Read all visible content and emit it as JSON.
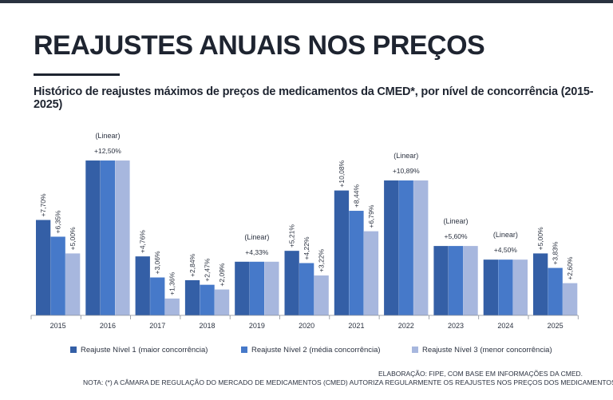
{
  "header": {
    "title": "REAJUSTES ANUAIS NOS PREÇOS",
    "subtitle": "Histórico de reajustes máximos de preços de medicamentos da CMED*, por nível de concorrência (2015-2025)"
  },
  "colors": {
    "nivel1": "#345fa6",
    "nivel2": "#4679c9",
    "nivel3": "#a7b7de",
    "text": "#1e2430"
  },
  "chart_data": {
    "type": "bar",
    "title": "",
    "xlabel": "",
    "ylabel": "",
    "ylim": [
      0,
      14.5
    ],
    "grid": false,
    "legend_position": "bottom",
    "categories": [
      "2015",
      "2016",
      "2017",
      "2018",
      "2019",
      "2020",
      "2021",
      "2022",
      "2023",
      "2024",
      "2025"
    ],
    "series": [
      {
        "name": "Reajuste Nível 1 (maior concorrência)",
        "values": [
          7.7,
          12.5,
          4.76,
          2.84,
          4.33,
          5.21,
          10.08,
          10.89,
          5.6,
          4.5,
          5.0
        ]
      },
      {
        "name": "Reajuste Nível 2 (média concorrência)",
        "values": [
          6.35,
          12.5,
          3.06,
          2.47,
          4.33,
          4.22,
          8.44,
          10.89,
          5.6,
          4.5,
          3.83
        ]
      },
      {
        "name": "Reajuste Nível 3 (menor concorrência)",
        "values": [
          5.0,
          12.5,
          1.36,
          2.09,
          4.33,
          3.22,
          6.79,
          10.89,
          5.6,
          4.5,
          2.6
        ]
      }
    ],
    "linear_years": [
      {
        "category": "2016",
        "note": "(Linear)",
        "label": "+12,50%"
      },
      {
        "category": "2019",
        "note": "(Linear)",
        "label": "+4,33%"
      },
      {
        "category": "2022",
        "note": "(Linear)",
        "label": "+10,89%"
      },
      {
        "category": "2023",
        "note": "(Linear)",
        "label": "+5,60%"
      },
      {
        "category": "2024",
        "note": "(Linear)",
        "label": "+4,50%"
      }
    ],
    "data_labels": {
      "2015": [
        "+7,70%",
        "+6,35%",
        "+5,00%"
      ],
      "2017": [
        "+4,76%",
        "+3,06%",
        "+1,36%"
      ],
      "2018": [
        "+2,84%",
        "+2,47%",
        "+2,09%"
      ],
      "2020": [
        "+5,21%",
        "+4,22%",
        "+3,22%"
      ],
      "2021": [
        "+10,08%",
        "+8,44%",
        "+6,79%"
      ],
      "2025": [
        "+5,00%",
        "+3,83%",
        "+2,60%"
      ]
    }
  },
  "legend": {
    "items": [
      "Reajuste Nível 1 (maior concorrência)",
      "Reajuste Nível 2 (média concorrência)",
      "Reajuste Nível 3 (menor concorrência)"
    ]
  },
  "footer": {
    "source": "ELABORAÇÃO: FIPE, COM BASE EM INFORMAÇÕES DA CMED.",
    "note": "NOTA: (*) A CÂMARA DE REGULAÇÃO DO MERCADO DE MEDICAMENTOS (CMED) AUTORIZA REGULARMENTE OS REAJUSTES NOS PREÇOS DOS MEDICAMENTOS."
  }
}
